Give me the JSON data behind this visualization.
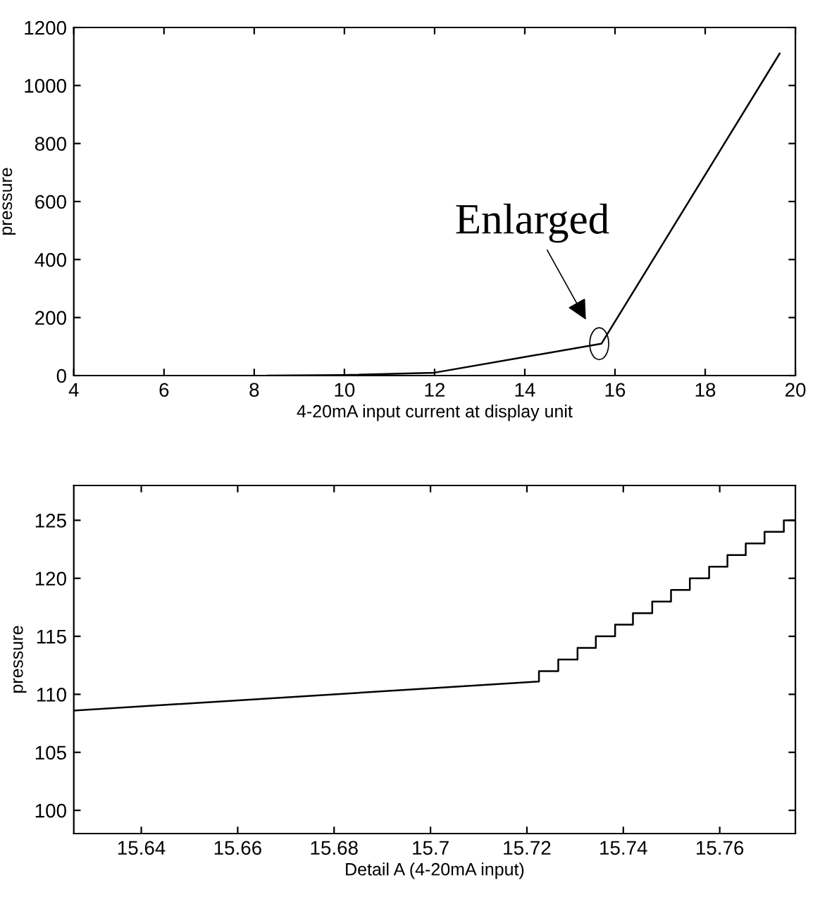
{
  "chart_data": [
    {
      "type": "line",
      "xlabel": "4-20mA input current at display unit",
      "ylabel": "pressure",
      "x": [
        8.3,
        10,
        12,
        15.7,
        19.65
      ],
      "series": [
        {
          "color": "#000000",
          "values": [
            0,
            2,
            10,
            110,
            1110
          ]
        }
      ],
      "xlim": [
        4,
        20
      ],
      "ylim": [
        0,
        1200
      ],
      "xticks": [
        4,
        6,
        8,
        10,
        12,
        14,
        16,
        18,
        20
      ],
      "yticks": [
        0,
        200,
        400,
        600,
        800,
        1000,
        1200
      ],
      "annotations": [
        {
          "text": "Enlarged",
          "x": 15.65,
          "y": 110
        }
      ],
      "grid": false,
      "legend": false
    },
    {
      "type": "line",
      "xlabel": "Detail A (4-20mA input)",
      "ylabel": "pressure",
      "x": [
        15.626,
        15.7225,
        15.7225,
        15.7265,
        15.7265,
        15.7305,
        15.7305,
        15.7343,
        15.7343,
        15.7383,
        15.7383,
        15.742,
        15.742,
        15.746,
        15.746,
        15.7499,
        15.7499,
        15.7538,
        15.7538,
        15.7578,
        15.7578,
        15.7616,
        15.7616,
        15.7654,
        15.7654,
        15.7693,
        15.7693,
        15.7733,
        15.7733,
        15.7757
      ],
      "series": [
        {
          "color": "#000000",
          "values": [
            108.6,
            111.1,
            112,
            112,
            113,
            113,
            114,
            114,
            115,
            115,
            116,
            116,
            117,
            117,
            118,
            118,
            119,
            119,
            120,
            120,
            121,
            121,
            122,
            122,
            123,
            123,
            124,
            124,
            125,
            125
          ]
        }
      ],
      "xlim": [
        15.626,
        15.7757
      ],
      "ylim": [
        98,
        128
      ],
      "xticks": [
        15.64,
        15.66,
        15.68,
        15.7,
        15.72,
        15.74,
        15.76
      ],
      "yticks": [
        100,
        105,
        110,
        115,
        120,
        125
      ],
      "grid": false,
      "legend": false
    }
  ]
}
